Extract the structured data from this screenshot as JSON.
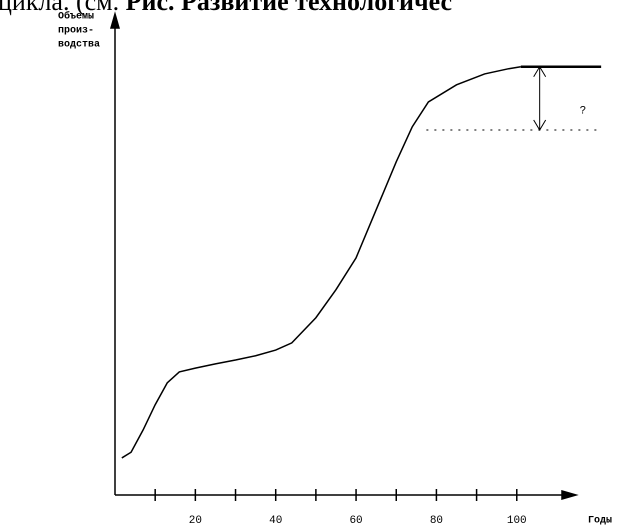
{
  "chart_data": {
    "type": "line",
    "title": {
      "plain": "цикла. (см. ",
      "bold": "Рис. Развитие технологичес"
    },
    "y_label": [
      "Объемы",
      "произ-",
      "водства"
    ],
    "x_label": "Годы",
    "x": [
      1.7,
      4,
      7,
      10,
      13,
      16,
      20,
      25,
      30,
      35,
      40,
      44,
      50,
      55,
      60,
      65,
      70,
      74,
      78,
      85,
      92,
      98,
      101
    ],
    "values": [
      7.8,
      9,
      13.7,
      19,
      23.6,
      25.9,
      26.7,
      27.6,
      28.4,
      29.3,
      30.5,
      32,
      37.3,
      43.2,
      49.9,
      60,
      70.1,
      77.5,
      82.7,
      86.3,
      88.6,
      89.7,
      90.1
    ],
    "color": "#000000",
    "plateau": {
      "x": [
        101,
        121
      ],
      "values": [
        90.1,
        90.1
      ]
    },
    "reference_line": {
      "x": [
        77.5,
        120.6
      ],
      "value": 76.8
    },
    "gap_arrow": {
      "x": 105.7,
      "values": [
        90.1,
        76.8
      ],
      "label": "?"
    },
    "xlim": [
      0,
      113
    ],
    "ylim": [
      0,
      101
    ],
    "xticks": [
      20,
      40,
      60,
      80,
      100
    ],
    "xminor_ticks": [
      10,
      30,
      50,
      70,
      90
    ]
  }
}
